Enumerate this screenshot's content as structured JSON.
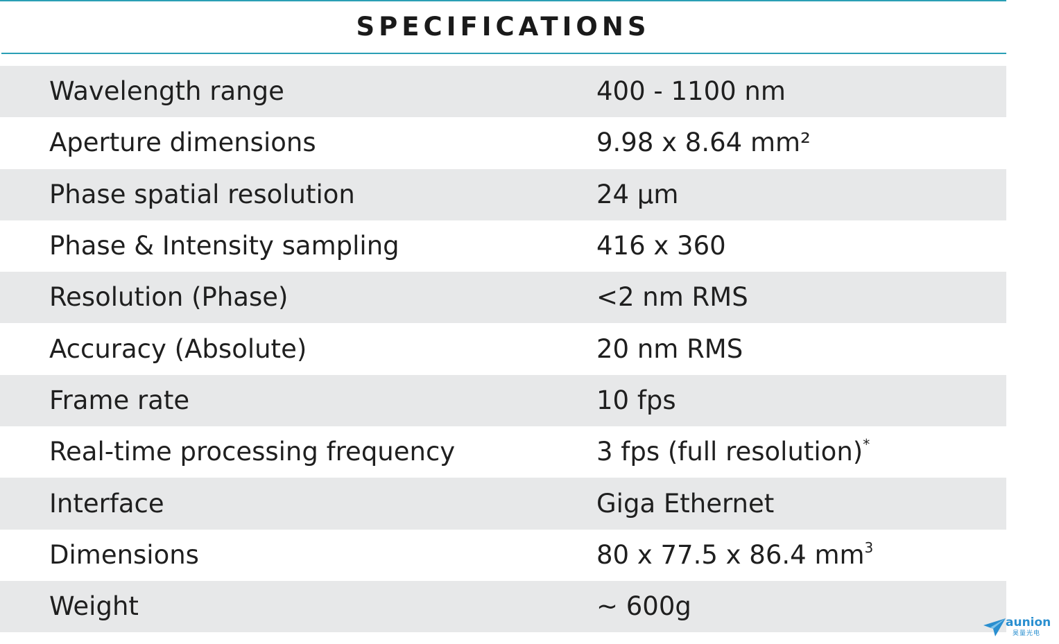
{
  "header": {
    "title": "SPECIFICATIONS"
  },
  "colors": {
    "accent": "#2a9fb5",
    "row_shade": "#e7e8e9",
    "text": "#1f1f1f",
    "logo": "#2a8fd0"
  },
  "specs": [
    {
      "label": "Wavelength range",
      "value": "400 - 1100 nm",
      "sup": ""
    },
    {
      "label": "Aperture dimensions",
      "value": "9.98 x 8.64 mm²",
      "sup": ""
    },
    {
      "label": "Phase spatial resolution",
      "value": "24 µm",
      "sup": ""
    },
    {
      "label": "Phase & Intensity sampling",
      "value": "416 x 360",
      "sup": ""
    },
    {
      "label": "Resolution (Phase)",
      "value": "<2 nm RMS",
      "sup": ""
    },
    {
      "label": "Accuracy (Absolute)",
      "value": "20 nm RMS",
      "sup": ""
    },
    {
      "label": "Frame rate",
      "value": "10 fps",
      "sup": ""
    },
    {
      "label": "Real-time processing frequency",
      "value": "3 fps (full resolution)",
      "sup": "*"
    },
    {
      "label": "Interface",
      "value": "Giga Ethernet",
      "sup": ""
    },
    {
      "label": "Dimensions",
      "value": "80 x 77.5 x 86.4 mm",
      "sup": "3"
    },
    {
      "label": "Weight",
      "value": "~ 600g",
      "sup": ""
    }
  ],
  "logo": {
    "name": "aunion",
    "subtitle": "昊量光电",
    "icon": "paper-plane-icon"
  }
}
